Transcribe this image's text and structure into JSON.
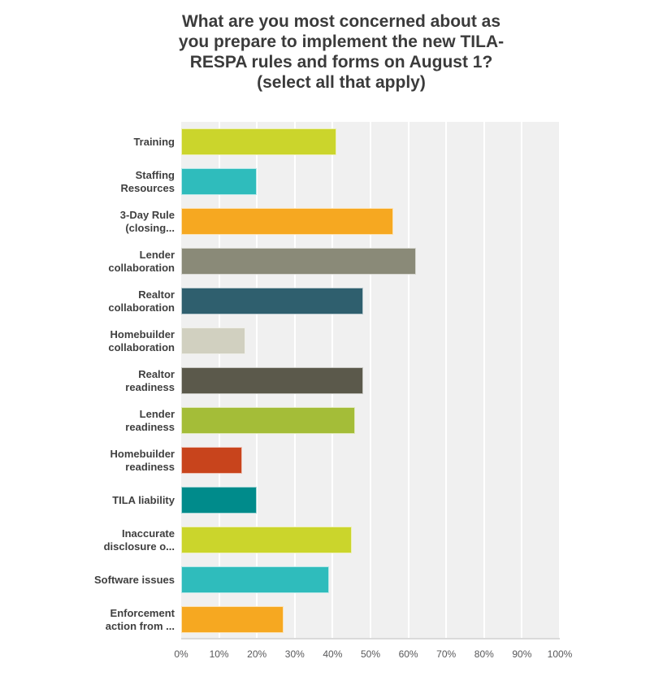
{
  "title": {
    "lines": [
      "What are you most concerned about as",
      "you prepare to implement the new TILA-",
      "RESPA rules and forms on August 1?",
      "(select all that apply)"
    ]
  },
  "chart_data": {
    "type": "bar",
    "orientation": "horizontal",
    "title": "What are you most concerned about as you prepare to implement the new TILA-RESPA rules and forms on August 1? (select all that apply)",
    "categories": [
      "Training",
      "Staffing Resources",
      "3-Day Rule (closing...",
      "Lender collaboration",
      "Realtor collaboration",
      "Homebuilder collaboration",
      "Realtor readiness",
      "Lender readiness",
      "Homebuilder readiness",
      "TILA liability",
      "Inaccurate disclosure o...",
      "Software issues",
      "Enforcement action from ..."
    ],
    "category_label_lines": [
      [
        "Training"
      ],
      [
        "Staffing",
        "Resources"
      ],
      [
        "3-Day Rule",
        "(closing..."
      ],
      [
        "Lender",
        "collaboration"
      ],
      [
        "Realtor",
        "collaboration"
      ],
      [
        "Homebuilder",
        "collaboration"
      ],
      [
        "Realtor",
        "readiness"
      ],
      [
        "Lender",
        "readiness"
      ],
      [
        "Homebuilder",
        "readiness"
      ],
      [
        "TILA liability"
      ],
      [
        "Inaccurate",
        "disclosure o..."
      ],
      [
        "Software issues"
      ],
      [
        "Enforcement",
        "action from ..."
      ]
    ],
    "values": [
      41,
      20,
      56,
      62,
      48,
      17,
      48,
      46,
      16,
      20,
      45,
      39,
      27
    ],
    "unit": "%",
    "bar_colors": [
      "#cbd52c",
      "#2fbcbc",
      "#f6a821",
      "#8a8a78",
      "#2f5f6e",
      "#d1d0c0",
      "#5b594b",
      "#a4bd38",
      "#c8441c",
      "#008b8b",
      "#cbd52c",
      "#2fbcbc",
      "#f6a821"
    ],
    "xlabel": "",
    "ylabel": "",
    "xlim": [
      0,
      100
    ],
    "x_ticks": [
      "0%",
      "10%",
      "20%",
      "30%",
      "40%",
      "50%",
      "60%",
      "70%",
      "80%",
      "90%",
      "100%"
    ],
    "grid": true,
    "legend": false,
    "plot_bg_color": "#f0f0f0",
    "gridline_color": "#ffffff"
  }
}
